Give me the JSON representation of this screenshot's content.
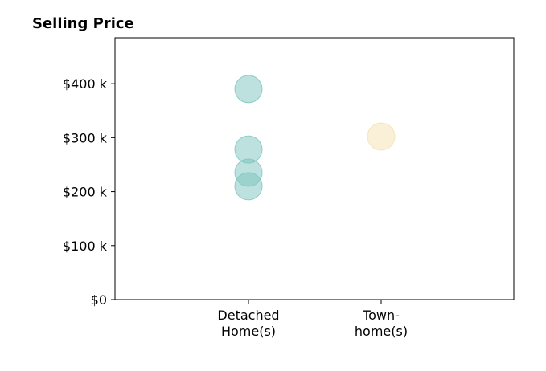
{
  "chart_data": {
    "type": "scatter",
    "title": "Selling Price",
    "xlabel": "",
    "ylabel": "",
    "categories": [
      "Detached\nHome(s)",
      "Town-\nhome(s)"
    ],
    "ylim": [
      0,
      485000
    ],
    "yticks": [
      0,
      100000,
      200000,
      300000,
      400000
    ],
    "ytick_labels": [
      "$0",
      "$100 k",
      "$200 k",
      "$300 k",
      "$400 k"
    ],
    "grid": false,
    "legend": "none",
    "series": [
      {
        "category": "Detached\nHome(s)",
        "color": "#7cc4bd",
        "values": [
          390000,
          278000,
          235000,
          210000
        ]
      },
      {
        "category": "Town-\nhome(s)",
        "color": "#f5e1b0",
        "values": [
          302000
        ]
      }
    ]
  }
}
